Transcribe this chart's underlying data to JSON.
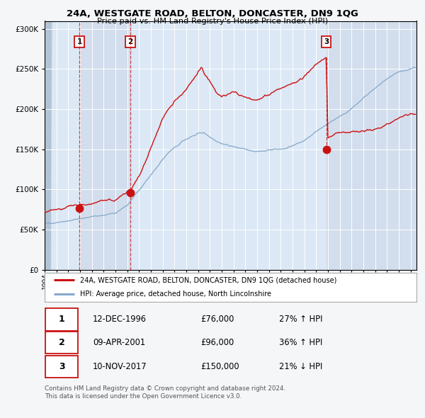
{
  "title1": "24A, WESTGATE ROAD, BELTON, DONCASTER, DN9 1QG",
  "title2": "Price paid vs. HM Land Registry's House Price Index (HPI)",
  "legend_red": "24A, WESTGATE ROAD, BELTON, DONCASTER, DN9 1QG (detached house)",
  "legend_blue": "HPI: Average price, detached house, North Lincolnshire",
  "footnote1": "Contains HM Land Registry data © Crown copyright and database right 2024.",
  "footnote2": "This data is licensed under the Open Government Licence v3.0.",
  "sales": [
    {
      "num": 1,
      "date": "12-DEC-1996",
      "year_f": 1996.95,
      "price": 76000,
      "pct": "27%",
      "dir": "↑"
    },
    {
      "num": 2,
      "date": "09-APR-2001",
      "year_f": 2001.27,
      "price": 96000,
      "pct": "36%",
      "dir": "↑"
    },
    {
      "num": 3,
      "date": "10-NOV-2017",
      "year_f": 2017.86,
      "price": 150000,
      "pct": "21%",
      "dir": "↓"
    }
  ],
  "ylim": [
    0,
    310000
  ],
  "yticks": [
    0,
    50000,
    100000,
    150000,
    200000,
    250000,
    300000
  ],
  "xstart": 1994.0,
  "xend": 2025.5,
  "bg_color": "#dce8f5",
  "grid_color": "#ffffff",
  "red_color": "#cc1111",
  "blue_color": "#88aacc",
  "marker_color": "#cc1111",
  "box_edge_color": "#cc1111",
  "shade_color": "#ccd8e8",
  "hatch_color": "#bccede",
  "fig_bg": "#f4f6f8"
}
